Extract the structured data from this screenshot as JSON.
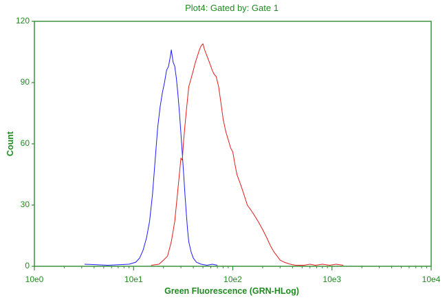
{
  "colors": {
    "axis": "#2e8b2e",
    "text": "#1f8a1f",
    "series_blue": "#1a1aff",
    "series_red": "#e41a1a"
  },
  "chart_data": {
    "type": "line",
    "title": "Plot4:  Gated by: Gate 1",
    "xlabel": "Green Fluorescence (GRN-HLog)",
    "ylabel": "Count",
    "x_scale": "log",
    "xlim": [
      1,
      10000
    ],
    "ylim": [
      0,
      120
    ],
    "x_ticks": [
      {
        "value": 1,
        "label": "10e0"
      },
      {
        "value": 10,
        "label": "10e1"
      },
      {
        "value": 100,
        "label": "10e2"
      },
      {
        "value": 1000,
        "label": "10e3"
      },
      {
        "value": 10000,
        "label": "10e4"
      }
    ],
    "y_ticks": [
      {
        "value": 0,
        "label": "0"
      },
      {
        "value": 30,
        "label": "30"
      },
      {
        "value": 60,
        "label": "60"
      },
      {
        "value": 90,
        "label": "90"
      },
      {
        "value": 120,
        "label": "120"
      }
    ],
    "grid": false,
    "legend": "none",
    "series": [
      {
        "color": "#1a1aff",
        "points": [
          [
            3.2,
            1
          ],
          [
            5.5,
            0.5
          ],
          [
            9,
            1
          ],
          [
            10.5,
            2
          ],
          [
            11.5,
            4
          ],
          [
            12.5,
            8
          ],
          [
            13.5,
            14
          ],
          [
            14.5,
            22
          ],
          [
            15.5,
            35
          ],
          [
            16.5,
            52
          ],
          [
            17.5,
            68
          ],
          [
            18.5,
            78
          ],
          [
            19.5,
            85
          ],
          [
            20.5,
            90
          ],
          [
            21.5,
            96
          ],
          [
            22.5,
            98
          ],
          [
            23.5,
            103
          ],
          [
            24,
            106
          ],
          [
            25,
            100
          ],
          [
            26,
            98
          ],
          [
            27,
            92
          ],
          [
            28,
            84
          ],
          [
            29,
            75
          ],
          [
            30,
            65
          ],
          [
            31,
            55
          ],
          [
            32,
            45
          ],
          [
            33,
            35
          ],
          [
            34,
            26
          ],
          [
            35,
            18
          ],
          [
            36,
            12
          ],
          [
            38,
            7
          ],
          [
            40,
            4
          ],
          [
            43,
            2
          ],
          [
            48,
            1
          ],
          [
            55,
            0.5
          ],
          [
            62,
            1
          ],
          [
            70,
            0.5
          ]
        ]
      },
      {
        "color": "#e41a1a",
        "points": [
          [
            15,
            0.5
          ],
          [
            18,
            1
          ],
          [
            20,
            3
          ],
          [
            22,
            5
          ],
          [
            24,
            12
          ],
          [
            26,
            22
          ],
          [
            28,
            38
          ],
          [
            30,
            53
          ],
          [
            31,
            52
          ],
          [
            32,
            62
          ],
          [
            34,
            76
          ],
          [
            36,
            88
          ],
          [
            38,
            92
          ],
          [
            40,
            96
          ],
          [
            42,
            100
          ],
          [
            44,
            103
          ],
          [
            46,
            106
          ],
          [
            48,
            108
          ],
          [
            50,
            109
          ],
          [
            52,
            106
          ],
          [
            55,
            103
          ],
          [
            58,
            100
          ],
          [
            60,
            98
          ],
          [
            62,
            96
          ],
          [
            65,
            94
          ],
          [
            68,
            93
          ],
          [
            72,
            88
          ],
          [
            76,
            80
          ],
          [
            80,
            72
          ],
          [
            85,
            66
          ],
          [
            90,
            62
          ],
          [
            95,
            58
          ],
          [
            100,
            56
          ],
          [
            105,
            50
          ],
          [
            110,
            45
          ],
          [
            120,
            40
          ],
          [
            130,
            35
          ],
          [
            140,
            30
          ],
          [
            150,
            28
          ],
          [
            160,
            26
          ],
          [
            170,
            24
          ],
          [
            180,
            22
          ],
          [
            190,
            20
          ],
          [
            200,
            18
          ],
          [
            220,
            14
          ],
          [
            240,
            10
          ],
          [
            260,
            7
          ],
          [
            280,
            5
          ],
          [
            300,
            3
          ],
          [
            330,
            2
          ],
          [
            380,
            1
          ],
          [
            430,
            0.5
          ],
          [
            520,
            0.5
          ],
          [
            600,
            1
          ],
          [
            680,
            0.5
          ],
          [
            800,
            1
          ],
          [
            950,
            0.5
          ],
          [
            1100,
            1
          ],
          [
            1300,
            0.5
          ]
        ]
      }
    ]
  }
}
